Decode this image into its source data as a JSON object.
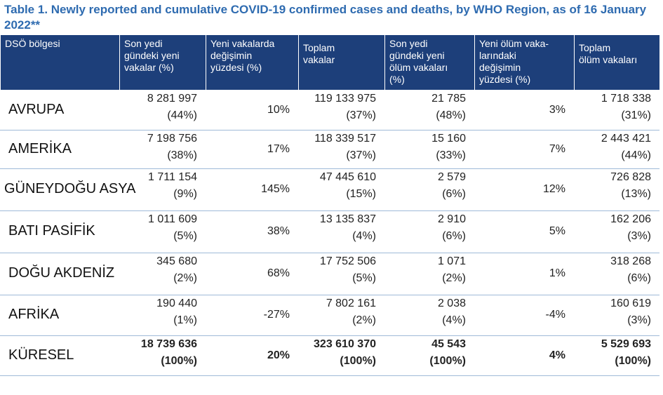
{
  "title": "Table 1. Newly reported and cumulative COVID-19 confirmed cases and deaths, by WHO Region, as of 16 January 2022**",
  "table": {
    "headers": [
      [
        "DSÖ bölgesi"
      ],
      [
        "Son yedi",
        "gündeki yeni",
        "vakalar (%)"
      ],
      [
        "Yeni vakalarda",
        "değişimin",
        "yüzdesi (%)"
      ],
      [
        "Toplam",
        "vakalar"
      ],
      [
        "Son yedi",
        "gündeki yeni",
        "ölüm vakaları",
        "(%)"
      ],
      [
        "Yeni ölüm vaka-",
        "larındaki",
        "değişimin",
        "yüzdesi (%)"
      ],
      [
        "Toplam",
        "ölüm vakaları"
      ]
    ],
    "rows": [
      [
        "AVRUPA",
        [
          "8 281 997",
          "(44%)"
        ],
        [
          "10%"
        ],
        [
          "119 133 975",
          "(37%)"
        ],
        [
          "21 785",
          "(48%)"
        ],
        [
          "3%"
        ],
        [
          "1 718 338",
          "(31%)"
        ]
      ],
      [
        "AMERİKA",
        [
          "7 198 756",
          "(38%)"
        ],
        [
          "17%"
        ],
        [
          "118 339 517",
          "(37%)"
        ],
        [
          "15 160",
          "(33%)"
        ],
        [
          "7%"
        ],
        [
          "2 443 421",
          "(44%)"
        ]
      ],
      [
        "GÜNEYDOĞU ASYA",
        [
          "1 711 154",
          "(9%)"
        ],
        [
          "145%"
        ],
        [
          "47 445 610",
          "(15%)"
        ],
        [
          "2 579",
          "(6%)"
        ],
        [
          "12%"
        ],
        [
          "726 828",
          "(13%)"
        ]
      ],
      [
        "BATI PASİFİK",
        [
          "1 011 609",
          "(5%)"
        ],
        [
          "38%"
        ],
        [
          "13 135 837",
          "(4%)"
        ],
        [
          "2 910",
          "(6%)"
        ],
        [
          "5%"
        ],
        [
          "162 206",
          "(3%)"
        ]
      ],
      [
        "DOĞU AKDENİZ",
        [
          "345 680",
          "(2%)"
        ],
        [
          "68%"
        ],
        [
          "17 752 506",
          "(5%)"
        ],
        [
          "1 071",
          "(2%)"
        ],
        [
          "1%"
        ],
        [
          "318 268",
          "(6%)"
        ]
      ],
      [
        "AFRİKA",
        [
          "190 440",
          "(1%)"
        ],
        [
          "-27%"
        ],
        [
          "7 802 161",
          "(2%)"
        ],
        [
          "2 038",
          "(4%)"
        ],
        [
          "-4%"
        ],
        [
          "160 619",
          "(3%)"
        ]
      ],
      [
        "KÜRESEL",
        [
          "18 739 636",
          "(100%)"
        ],
        [
          "20%"
        ],
        [
          "323 610 370",
          "(100%)"
        ],
        [
          "45 543",
          "(100%)"
        ],
        [
          "4%"
        ],
        [
          "5 529 693",
          "(100%)"
        ]
      ]
    ]
  }
}
